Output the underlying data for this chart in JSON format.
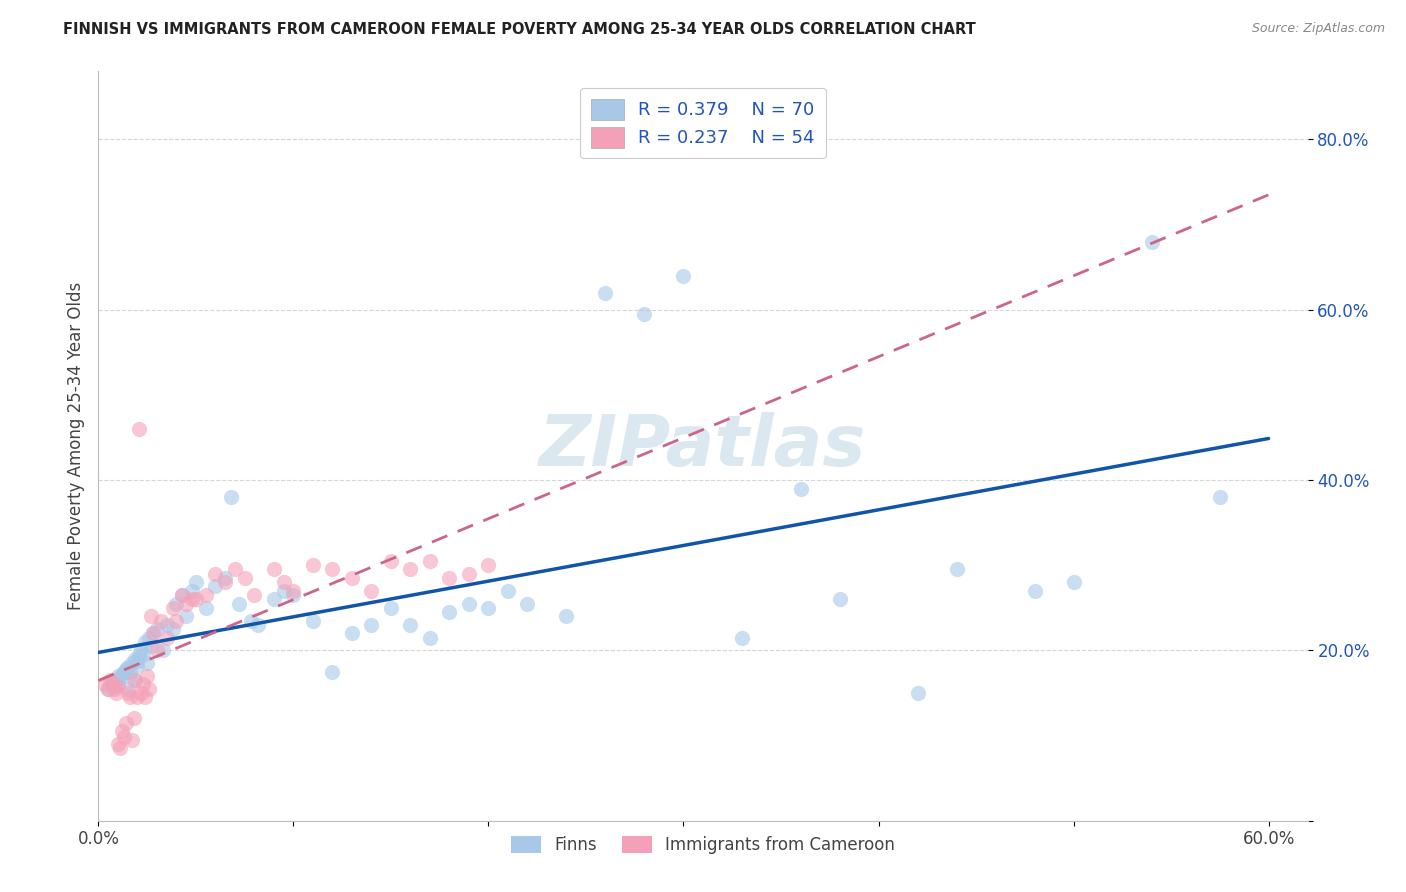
{
  "title": "FINNISH VS IMMIGRANTS FROM CAMEROON FEMALE POVERTY AMONG 25-34 YEAR OLDS CORRELATION CHART",
  "source": "Source: ZipAtlas.com",
  "ylabel": "Female Poverty Among 25-34 Year Olds",
  "xlim": [
    0.0,
    0.62
  ],
  "ylim": [
    0.0,
    0.88
  ],
  "x_tick_positions": [
    0.0,
    0.1,
    0.2,
    0.3,
    0.4,
    0.5,
    0.6
  ],
  "x_tick_labels": [
    "0.0%",
    "",
    "",
    "",
    "",
    "",
    "60.0%"
  ],
  "y_tick_positions": [
    0.0,
    0.2,
    0.4,
    0.6,
    0.8
  ],
  "y_tick_labels": [
    "",
    "20.0%",
    "40.0%",
    "60.0%",
    "80.0%"
  ],
  "finns_color": "#a8c8e8",
  "cameroon_color": "#f4a0b8",
  "finns_line_color": "#1155aa",
  "cameroon_line_color": "#cc6688",
  "watermark_color": "#dce8f0",
  "legend_color": "#2255bb",
  "title_color": "#222222",
  "source_color": "#888888",
  "ylabel_color": "#444444",
  "grid_color": "#cccccc",
  "background_color": "#ffffff",
  "finns_x": [
    0.005,
    0.007,
    0.008,
    0.009,
    0.01,
    0.01,
    0.011,
    0.012,
    0.013,
    0.014,
    0.015,
    0.015,
    0.016,
    0.017,
    0.018,
    0.019,
    0.02,
    0.02,
    0.021,
    0.022,
    0.023,
    0.024,
    0.025,
    0.026,
    0.027,
    0.028,
    0.03,
    0.033,
    0.035,
    0.038,
    0.04,
    0.043,
    0.045,
    0.048,
    0.05,
    0.055,
    0.06,
    0.065,
    0.068,
    0.072,
    0.078,
    0.082,
    0.09,
    0.095,
    0.1,
    0.11,
    0.12,
    0.13,
    0.14,
    0.15,
    0.16,
    0.17,
    0.18,
    0.19,
    0.2,
    0.21,
    0.22,
    0.24,
    0.26,
    0.28,
    0.3,
    0.33,
    0.36,
    0.38,
    0.42,
    0.44,
    0.48,
    0.5,
    0.54,
    0.575
  ],
  "finns_y": [
    0.155,
    0.16,
    0.158,
    0.165,
    0.162,
    0.17,
    0.168,
    0.172,
    0.175,
    0.178,
    0.155,
    0.18,
    0.175,
    0.185,
    0.165,
    0.19,
    0.188,
    0.182,
    0.195,
    0.2,
    0.195,
    0.21,
    0.185,
    0.215,
    0.205,
    0.22,
    0.225,
    0.2,
    0.23,
    0.225,
    0.255,
    0.265,
    0.24,
    0.27,
    0.28,
    0.25,
    0.275,
    0.285,
    0.38,
    0.255,
    0.235,
    0.23,
    0.26,
    0.27,
    0.265,
    0.235,
    0.175,
    0.22,
    0.23,
    0.25,
    0.23,
    0.215,
    0.245,
    0.255,
    0.25,
    0.27,
    0.255,
    0.24,
    0.62,
    0.595,
    0.64,
    0.215,
    0.39,
    0.26,
    0.15,
    0.295,
    0.27,
    0.28,
    0.68,
    0.38
  ],
  "cameroon_x": [
    0.003,
    0.005,
    0.006,
    0.007,
    0.008,
    0.009,
    0.01,
    0.01,
    0.011,
    0.012,
    0.013,
    0.014,
    0.015,
    0.016,
    0.017,
    0.018,
    0.019,
    0.02,
    0.021,
    0.022,
    0.023,
    0.024,
    0.025,
    0.026,
    0.027,
    0.028,
    0.03,
    0.032,
    0.035,
    0.038,
    0.04,
    0.043,
    0.045,
    0.048,
    0.05,
    0.055,
    0.06,
    0.065,
    0.07,
    0.075,
    0.08,
    0.09,
    0.095,
    0.1,
    0.11,
    0.12,
    0.13,
    0.14,
    0.15,
    0.16,
    0.17,
    0.18,
    0.19,
    0.2
  ],
  "cameroon_y": [
    0.16,
    0.155,
    0.165,
    0.16,
    0.155,
    0.15,
    0.158,
    0.09,
    0.085,
    0.105,
    0.098,
    0.115,
    0.15,
    0.145,
    0.095,
    0.12,
    0.165,
    0.145,
    0.46,
    0.15,
    0.16,
    0.145,
    0.17,
    0.155,
    0.24,
    0.22,
    0.2,
    0.235,
    0.215,
    0.25,
    0.235,
    0.265,
    0.255,
    0.26,
    0.26,
    0.265,
    0.29,
    0.28,
    0.295,
    0.285,
    0.265,
    0.295,
    0.28,
    0.27,
    0.3,
    0.295,
    0.285,
    0.27,
    0.305,
    0.295,
    0.305,
    0.285,
    0.29,
    0.3
  ],
  "finns_line_x_start": 0.0,
  "finns_line_x_end": 0.6,
  "cameroon_line_x_start": 0.0,
  "cameroon_line_x_end": 0.6
}
